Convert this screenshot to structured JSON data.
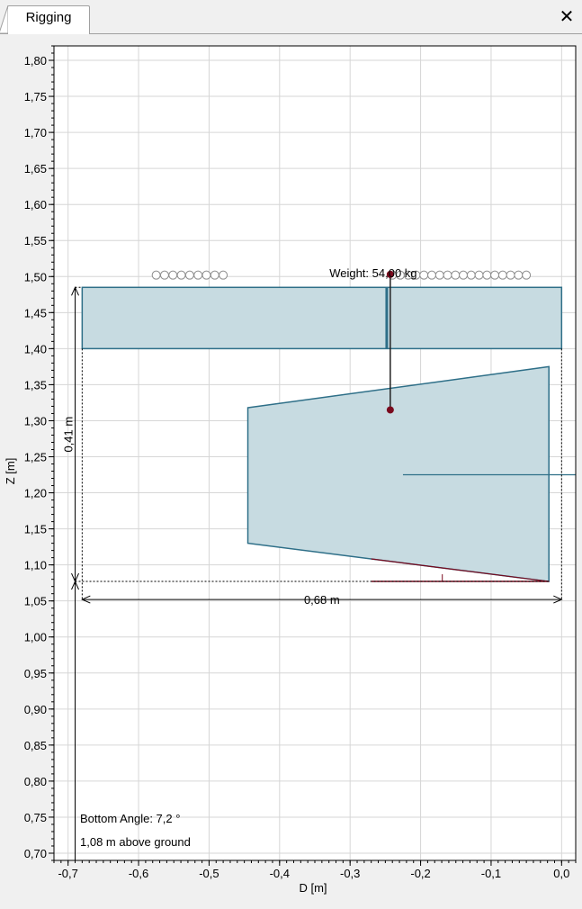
{
  "tabs": [
    {
      "label": "Rigging",
      "active": true
    }
  ],
  "close_glyph": "✕",
  "chart_data": {
    "type": "scatter",
    "xlabel": "D [m]",
    "ylabel": "Z [m]",
    "xlim": [
      -0.72,
      0.02
    ],
    "ylim": [
      0.69,
      1.82
    ],
    "x_ticks": [
      "-0,7",
      "-0,6",
      "-0,5",
      "-0,4",
      "-0,3",
      "-0,2",
      "-0,1",
      "0,0"
    ],
    "x_tick_values": [
      -0.7,
      -0.6,
      -0.5,
      -0.4,
      -0.3,
      -0.2,
      -0.1,
      0.0
    ],
    "y_ticks": [
      "1,80",
      "1,75",
      "1,70",
      "1,65",
      "1,60",
      "1,55",
      "1,50",
      "1,45",
      "1,40",
      "1,35",
      "1,30",
      "1,25",
      "1,20",
      "1,15",
      "1,10",
      "1,05",
      "1,00",
      "0,95",
      "0,90",
      "0,85",
      "0,80",
      "0,75",
      "0,70"
    ],
    "y_tick_values": [
      1.8,
      1.75,
      1.7,
      1.65,
      1.6,
      1.55,
      1.5,
      1.45,
      1.4,
      1.35,
      1.3,
      1.25,
      1.2,
      1.15,
      1.1,
      1.05,
      1.0,
      0.95,
      0.9,
      0.85,
      0.8,
      0.75,
      0.7
    ],
    "grid": true,
    "colors": {
      "fill": "#c7dbe1",
      "stroke": "#2e6f88",
      "point": "#7a0a1e",
      "dim": "#000000"
    },
    "bar_rect": {
      "x": [
        -0.68,
        0.0
      ],
      "z": [
        1.4,
        1.485
      ]
    },
    "divider_x": -0.248,
    "bar_beads": {
      "z": 1.502,
      "left_x": [
        -0.575,
        -0.48
      ],
      "right_x": [
        -0.24,
        -0.05
      ]
    },
    "trapezoid": [
      [
        -0.445,
        1.318
      ],
      [
        -0.018,
        1.375
      ],
      [
        -0.018,
        1.077
      ],
      [
        -0.445,
        1.13
      ]
    ],
    "trapezoid_centerline": {
      "x": [
        -0.225,
        0.02
      ],
      "z": 1.225
    },
    "rig_line": {
      "x": -0.243,
      "z": [
        1.503,
        1.315
      ]
    },
    "rig_points": [
      {
        "x": -0.243,
        "z": 1.503
      },
      {
        "x": -0.243,
        "z": 1.315
      }
    ],
    "bottom_line": {
      "x": [
        -0.27,
        -0.018
      ],
      "z": 1.077
    },
    "dimension_height": {
      "label": "0,41 m",
      "x": -0.69,
      "z": [
        1.077,
        1.485
      ]
    },
    "dimension_width": {
      "label": "0,68 m",
      "z": 1.052,
      "x": [
        -0.68,
        0.0
      ]
    },
    "ground_line": {
      "x": -0.69,
      "z": [
        0.69,
        1.077
      ]
    },
    "weight_label": "Weight: 54,00 kg",
    "annotations": [
      "Bottom Angle: 7,2 °",
      "1,08 m above ground"
    ]
  }
}
